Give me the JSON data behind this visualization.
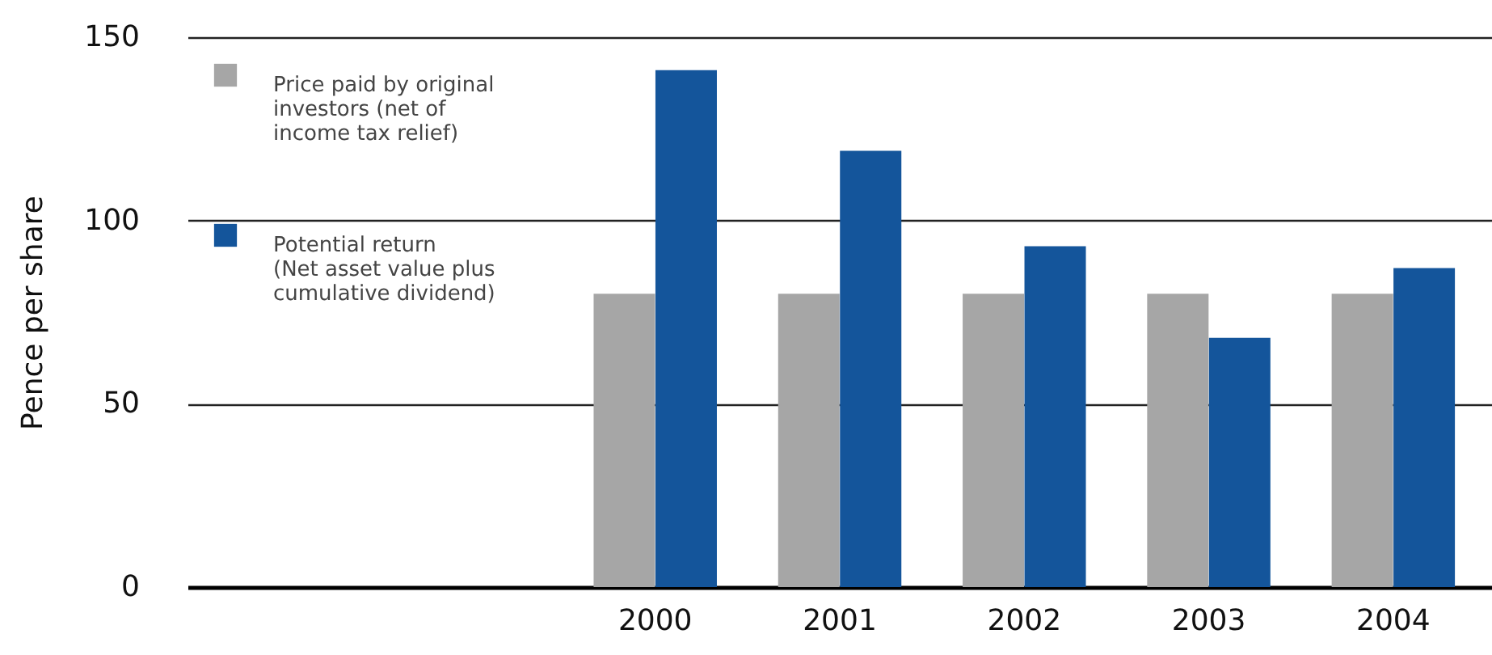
{
  "chart_data": {
    "type": "bar",
    "ylabel": "Pence per share",
    "categories": [
      null,
      null,
      "2000",
      "2001",
      "2002",
      "2003",
      "2004"
    ],
    "series": [
      {
        "name": "Price paid by original\ninvestors (net of\nincome tax relief)",
        "color": "#a6a6a6",
        "values": [
          null,
          null,
          80,
          80,
          80,
          80,
          80
        ]
      },
      {
        "name": "Potential return\n(Net asset value plus\ncumulative dividend)",
        "color": "#14559b",
        "values": [
          null,
          null,
          141,
          119,
          93,
          68,
          87
        ]
      }
    ],
    "ylim": [
      0,
      150
    ],
    "yticks": [
      0,
      50,
      100,
      150
    ],
    "grid": "y",
    "legend": "top left"
  }
}
